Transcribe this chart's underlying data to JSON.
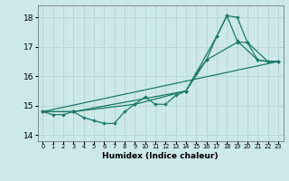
{
  "background_color": "#cce8e8",
  "grid_color": "#b8d8d8",
  "line_color": "#1a7a6a",
  "xlabel": "Humidex (Indice chaleur)",
  "ylim": [
    13.8,
    18.4
  ],
  "xlim": [
    -0.5,
    23.5
  ],
  "yticks": [
    14,
    15,
    16,
    17,
    18
  ],
  "xtick_labels": [
    "0",
    "1",
    "2",
    "3",
    "4",
    "5",
    "6",
    "7",
    "8",
    "9",
    "10",
    "11",
    "12",
    "13",
    "14",
    "15",
    "16",
    "17",
    "18",
    "19",
    "20",
    "21",
    "22",
    "23"
  ],
  "series": [
    {
      "x": [
        0,
        1,
        2,
        3,
        4,
        5,
        6,
        7,
        8,
        9,
        10,
        11,
        12,
        13,
        14,
        15,
        16,
        17,
        18,
        19,
        20,
        21,
        22,
        23
      ],
      "y": [
        14.8,
        14.7,
        14.7,
        14.8,
        14.6,
        14.5,
        14.4,
        14.4,
        14.8,
        15.05,
        15.3,
        15.05,
        15.05,
        15.35,
        15.5,
        16.1,
        16.55,
        17.35,
        18.05,
        18.0,
        17.15,
        16.55,
        16.5,
        16.5
      ],
      "markers": true
    },
    {
      "x": [
        0,
        3,
        14,
        17,
        18,
        19,
        21,
        22,
        23
      ],
      "y": [
        14.8,
        14.8,
        15.5,
        17.35,
        18.05,
        17.2,
        16.55,
        16.5,
        16.5
      ],
      "markers": true
    },
    {
      "x": [
        0,
        23
      ],
      "y": [
        14.8,
        16.5
      ],
      "markers": false
    },
    {
      "x": [
        0,
        3,
        9,
        14,
        16,
        19,
        20,
        22,
        23
      ],
      "y": [
        14.8,
        14.8,
        15.05,
        15.5,
        16.55,
        17.15,
        17.15,
        16.5,
        16.5
      ],
      "markers": true
    }
  ]
}
